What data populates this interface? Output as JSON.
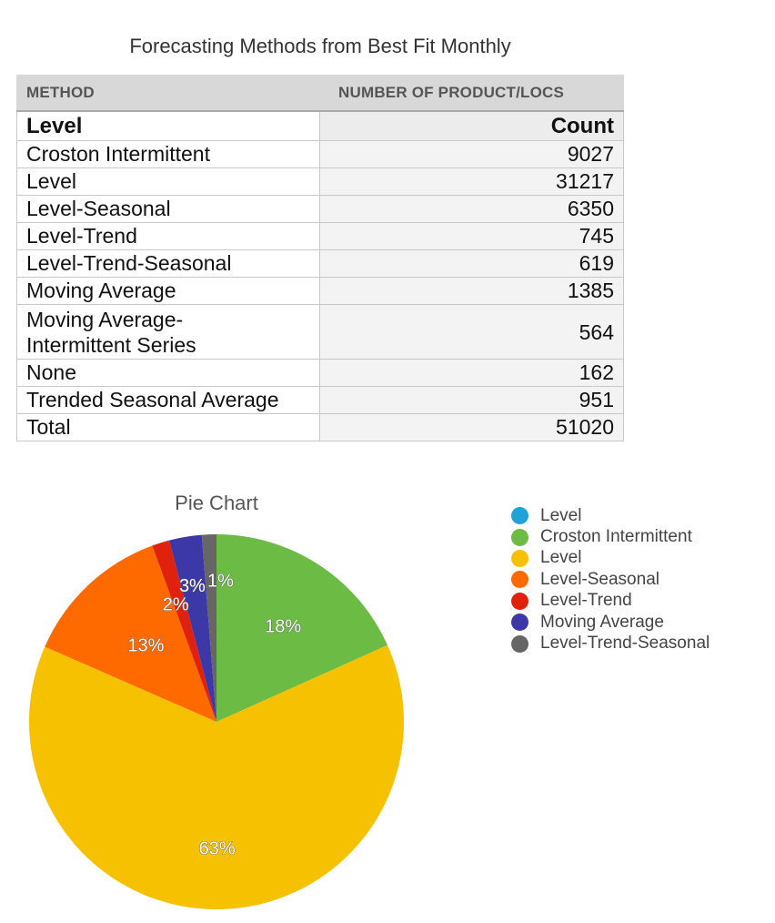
{
  "table": {
    "title": "Forecasting Methods from Best Fit Monthly",
    "header": {
      "method": "METHOD",
      "count": "NUMBER OF PRODUCT/LOCS"
    },
    "subheader": {
      "method": "Level",
      "count": "Count"
    },
    "rows": [
      {
        "method": "Croston Intermittent",
        "count": "9027"
      },
      {
        "method": "Level",
        "count": "31217"
      },
      {
        "method": "Level-Seasonal",
        "count": "6350"
      },
      {
        "method": "Level-Trend",
        "count": "745"
      },
      {
        "method": "Level-Trend-Seasonal",
        "count": "619"
      },
      {
        "method": "Moving Average",
        "count": "1385"
      },
      {
        "method_line1": "Moving Average-",
        "method_line2": "Intermittent Series",
        "count": "564"
      },
      {
        "method": "None",
        "count": "162"
      },
      {
        "method": "Trended Seasonal Average",
        "count": "951"
      },
      {
        "method": "Total",
        "count": "51020"
      }
    ]
  },
  "chart_data": {
    "type": "pie",
    "title": "Pie Chart",
    "legend_position": "right",
    "legend": [
      {
        "name": "Level",
        "color": "#1ea3d8"
      },
      {
        "name": "Croston Intermittent",
        "color": "#6cbb45"
      },
      {
        "name": "Level",
        "color": "#f5c100"
      },
      {
        "name": "Level-Seasonal",
        "color": "#ff6a00"
      },
      {
        "name": "Level-Trend",
        "color": "#e0210d"
      },
      {
        "name": "Moving Average",
        "color": "#3d38a8"
      },
      {
        "name": "Level-Trend-Seasonal",
        "color": "#666666"
      }
    ],
    "slices": [
      {
        "name": "Croston Intermittent",
        "value": 9027,
        "color": "#6cbb45",
        "label": "18%"
      },
      {
        "name": "Level",
        "value": 31217,
        "color": "#f5c100",
        "label": "63%"
      },
      {
        "name": "Level-Seasonal",
        "value": 6350,
        "color": "#ff6a00",
        "label": "13%"
      },
      {
        "name": "Level-Trend",
        "value": 745,
        "color": "#e0210d",
        "label": "2%"
      },
      {
        "name": "Moving Average",
        "value": 1385,
        "color": "#3d38a8",
        "label": "3%"
      },
      {
        "name": "Level-Trend-Seasonal",
        "value": 619,
        "color": "#666666",
        "label": "1%"
      }
    ]
  }
}
